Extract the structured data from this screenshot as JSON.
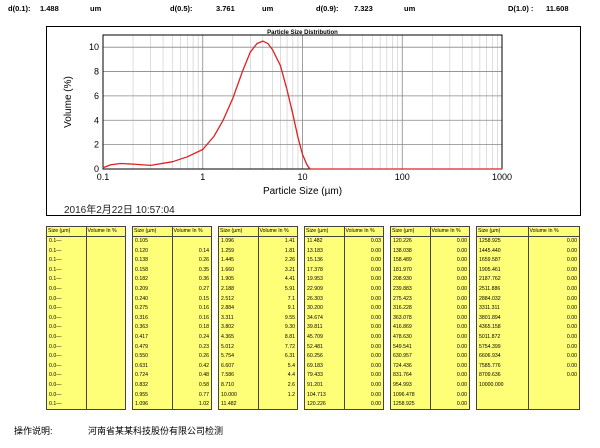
{
  "stats": [
    {
      "label": "d(0.1):",
      "value": "1.488",
      "unit": "um"
    },
    {
      "label": "d(0.5):",
      "value": "3.761",
      "unit": "um"
    },
    {
      "label": "d(0.9):",
      "value": "7.323",
      "unit": "um"
    },
    {
      "label": "D(1.0) :",
      "value": "11.608",
      "unit": ""
    }
  ],
  "chart_data": {
    "type": "line",
    "title": "Particle Size Distribution",
    "xlabel": "Particle Size (µm)",
    "ylabel": "Volume (%)",
    "xscale": "log",
    "xlim": [
      0.1,
      1000
    ],
    "ylim": [
      0,
      11
    ],
    "xticks": [
      "0.1",
      "1",
      "10",
      "100",
      "1000"
    ],
    "yticks": [
      "0",
      "2",
      "4",
      "6",
      "8",
      "10"
    ],
    "grid": true,
    "color": "#e02020",
    "x": [
      0.1,
      0.12,
      0.15,
      0.2,
      0.3,
      0.5,
      0.7,
      1.0,
      1.3,
      1.6,
      2.0,
      2.5,
      3.0,
      3.5,
      4.0,
      4.5,
      5.0,
      6.0,
      7.0,
      8.0,
      9.0,
      10.0,
      11.0,
      11.6,
      12,
      20,
      50,
      100,
      1000
    ],
    "y": [
      0.1,
      0.35,
      0.45,
      0.4,
      0.3,
      0.6,
      1.0,
      1.6,
      2.7,
      4.0,
      5.8,
      8.0,
      9.6,
      10.3,
      10.5,
      10.3,
      9.8,
      8.5,
      6.5,
      4.5,
      2.6,
      1.2,
      0.4,
      0.1,
      0,
      0,
      0,
      0,
      0
    ]
  },
  "datetime": "2016年2月22日 10:57:04",
  "table_header": {
    "size": "Size (µm)",
    "volume": "Volume In %"
  },
  "tables": [
    {
      "sizes": [
        "0.1—",
        "0.1—",
        "0.1—",
        "0.1—",
        "0.1—",
        "0.0—",
        "0.0—",
        "0.0—",
        "0.0—",
        "0.0—",
        "0.0—",
        "0.0—",
        "0.0—",
        "0.0—",
        "0.0—",
        "0.0—",
        "0.0—",
        "0.1—"
      ],
      "volumes": [
        "",
        "",
        "",
        "",
        "",
        "",
        "",
        "",
        "",
        "",
        "",
        "",
        "",
        "",
        "",
        "",
        "",
        ""
      ]
    },
    {
      "sizes": [
        "0.105",
        "0.120",
        "0.138",
        "0.158",
        "0.182",
        "0.209",
        "0.240",
        "0.275",
        "0.316",
        "0.363",
        "0.417",
        "0.479",
        "0.550",
        "0.631",
        "0.724",
        "0.832",
        "0.955",
        "1.096"
      ],
      "volumes": [
        "",
        "0.14",
        "0.26",
        "0.35",
        "0.36",
        "0.27",
        "0.15",
        "0.16",
        "0.16",
        "0.18",
        "0.24",
        "0.23",
        "0.26",
        "0.42",
        "0.48",
        "0.58",
        "0.77",
        "1.02"
      ]
    },
    {
      "sizes": [
        "1.096",
        "1.259",
        "1.445",
        "1.660",
        "1.905",
        "2.188",
        "2.512",
        "2.884",
        "3.311",
        "3.802",
        "4.365",
        "5.012",
        "5.754",
        "6.607",
        "7.586",
        "8.710",
        "10.000",
        "11.482"
      ],
      "volumes": [
        "1.41",
        "1.81",
        "2.26",
        "3.21",
        "4.41",
        "5.91",
        "7.1",
        "9.1",
        "9.55",
        "9.30",
        "8.81",
        "7.72",
        "6.31",
        "5.4",
        "4.4",
        "2.6",
        "1.2",
        ""
      ]
    },
    {
      "sizes": [
        "11.482",
        "13.183",
        "15.136",
        "17.378",
        "19.953",
        "22.909",
        "26.303",
        "30.200",
        "34.674",
        "39.811",
        "45.709",
        "52.481",
        "60.256",
        "69.183",
        "79.433",
        "91.201",
        "104.713",
        "120.226"
      ],
      "volumes": [
        "0.03",
        "0.00",
        "0.00",
        "0.00",
        "0.00",
        "0.00",
        "0.00",
        "0.00",
        "0.00",
        "0.00",
        "0.00",
        "0.00",
        "0.00",
        "0.00",
        "0.00",
        "0.00",
        "0.00",
        "0.00"
      ]
    },
    {
      "sizes": [
        "120.226",
        "138.038",
        "158.489",
        "181.970",
        "208.930",
        "239.883",
        "275.423",
        "316.228",
        "363.078",
        "416.869",
        "478.630",
        "549.541",
        "630.957",
        "724.436",
        "831.764",
        "954.993",
        "1096.478",
        "1258.925"
      ],
      "volumes": [
        "0.00",
        "0.00",
        "0.00",
        "0.00",
        "0.00",
        "0.00",
        "0.00",
        "0.00",
        "0.00",
        "0.00",
        "0.00",
        "0.00",
        "0.00",
        "0.00",
        "0.00",
        "0.00",
        "0.00",
        "0.00"
      ]
    },
    {
      "sizes": [
        "1258.925",
        "1445.440",
        "1659.587",
        "1905.461",
        "2187.762",
        "2511.886",
        "2884.032",
        "3311.311",
        "3801.894",
        "4365.158",
        "5011.872",
        "5754.399",
        "6606.934",
        "7585.776",
        "8709.636",
        "10000.000",
        "",
        ""
      ],
      "volumes": [
        "0.00",
        "0.00",
        "0.00",
        "0.00",
        "0.00",
        "0.00",
        "0.00",
        "0.00",
        "0.00",
        "0.00",
        "0.00",
        "0.00",
        "0.00",
        "0.00",
        "0.00",
        "",
        "",
        ""
      ]
    }
  ],
  "footer": {
    "label": "操作说明:",
    "company": "河南省某某科技股份有限公司检测"
  }
}
